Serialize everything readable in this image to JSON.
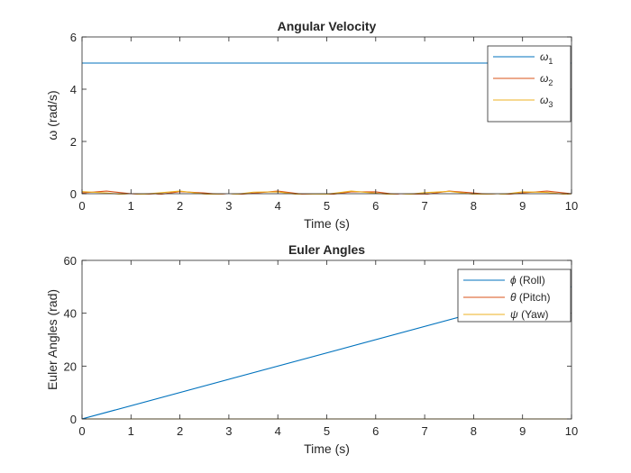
{
  "chart_data": [
    {
      "type": "line",
      "title": "Angular Velocity",
      "xlabel": "Time (s)",
      "ylabel": "ω (rad/s)",
      "xlim": [
        0,
        10
      ],
      "ylim": [
        0,
        6
      ],
      "xticks": [
        "0",
        "1",
        "2",
        "3",
        "4",
        "5",
        "6",
        "7",
        "8",
        "9",
        "10"
      ],
      "yticks": [
        "0",
        "2",
        "4",
        "6"
      ],
      "legend": "top-right",
      "grid": false,
      "x": [
        0,
        0.5,
        1,
        1.5,
        2,
        2.5,
        3,
        3.5,
        4,
        4.5,
        5,
        5.5,
        6,
        6.5,
        7,
        7.5,
        8,
        8.5,
        9,
        9.5,
        10
      ],
      "series": [
        {
          "name": "ω1",
          "base": "ω",
          "sub": "1",
          "color": "#0072BD",
          "values": [
            5,
            5,
            5,
            5,
            5,
            5,
            5,
            5,
            5,
            5,
            5,
            5,
            5,
            5,
            5,
            5,
            5,
            5,
            5,
            5,
            5
          ]
        },
        {
          "name": "ω2",
          "base": "ω",
          "sub": "2",
          "color": "#D95319",
          "values": [
            0.03,
            0.1,
            0.0,
            -0.05,
            0.08,
            0.03,
            -0.06,
            0.02,
            0.1,
            -0.02,
            -0.05,
            0.07,
            0.07,
            -0.05,
            -0.03,
            0.1,
            0.03,
            -0.06,
            0.03,
            0.1,
            0.0
          ]
        },
        {
          "name": "ω3",
          "base": "ω",
          "sub": "3",
          "color": "#EDB120",
          "values": [
            0.08,
            0.03,
            -0.06,
            0.02,
            0.1,
            -0.01,
            -0.06,
            0.06,
            0.07,
            -0.05,
            -0.02,
            0.1,
            0.02,
            -0.06,
            0.04,
            0.09,
            -0.02,
            -0.05,
            0.07,
            0.05,
            -0.05
          ]
        }
      ]
    },
    {
      "type": "line",
      "title": "Euler Angles",
      "xlabel": "Time (s)",
      "ylabel": "Euler Angles (rad)",
      "xlim": [
        0,
        10
      ],
      "ylim": [
        0,
        60
      ],
      "xticks": [
        "0",
        "1",
        "2",
        "3",
        "4",
        "5",
        "6",
        "7",
        "8",
        "9",
        "10"
      ],
      "yticks": [
        "0",
        "20",
        "40",
        "60"
      ],
      "legend": "top-right",
      "grid": false,
      "x": [
        0,
        10
      ],
      "series": [
        {
          "name": "ϕ (Roll)",
          "base": "ϕ",
          "sub": "",
          "suffix": " (Roll)",
          "color": "#0072BD",
          "values": [
            0,
            50
          ]
        },
        {
          "name": "θ (Pitch)",
          "base": "θ",
          "sub": "",
          "suffix": " (Pitch)",
          "color": "#D95319",
          "values": [
            0,
            0
          ]
        },
        {
          "name": "ψ (Yaw)",
          "base": "ψ",
          "sub": "",
          "suffix": " (Yaw)",
          "color": "#EDB120",
          "values": [
            0,
            0
          ]
        }
      ]
    }
  ]
}
